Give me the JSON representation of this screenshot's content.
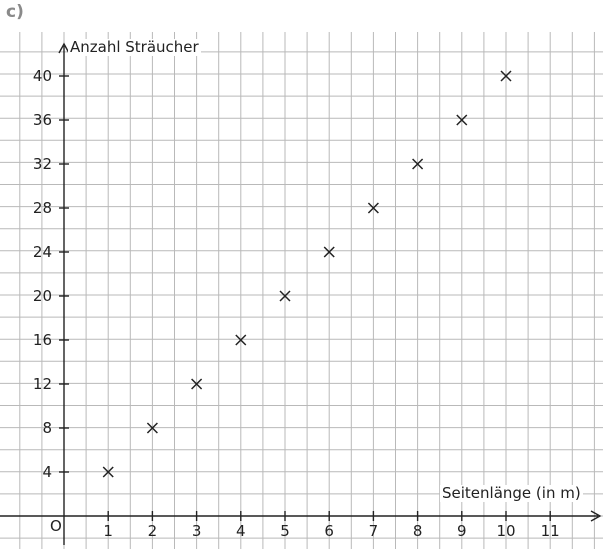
{
  "figure_label": "c)",
  "chart_data": {
    "type": "scatter",
    "xlabel": "Seitenlänge (in m)",
    "ylabel": "Anzahl Sträucher",
    "origin_label": "O",
    "x": [
      1,
      2,
      3,
      4,
      5,
      6,
      7,
      8,
      9,
      10
    ],
    "y": [
      4,
      8,
      12,
      16,
      20,
      24,
      28,
      32,
      36,
      40
    ],
    "x_ticks": [
      1,
      2,
      3,
      4,
      5,
      6,
      7,
      8,
      9,
      10,
      11
    ],
    "y_ticks": [
      4,
      8,
      12,
      16,
      20,
      24,
      28,
      32,
      36,
      40
    ],
    "xlim": [
      0,
      12
    ],
    "ylim": [
      0,
      42
    ],
    "marker": "x",
    "grid": true,
    "colors": {
      "grid": "#b9b9b9",
      "axis": "#222222",
      "marker": "#222222"
    }
  }
}
